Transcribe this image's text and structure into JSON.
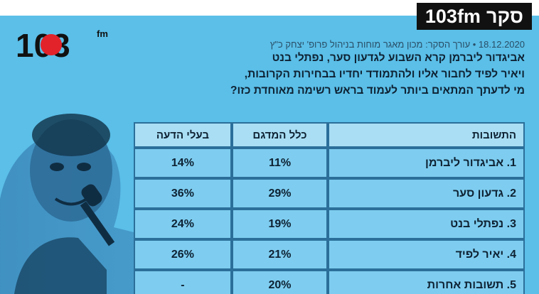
{
  "badge": {
    "title": "סקר",
    "brand": "103fm"
  },
  "logo": {
    "number": "103",
    "suffix": "fm"
  },
  "meta": "18.12.2020 • עורך הסקר: מכון מאגר מוחות בניהול פרופ' יצחק כ\"ץ",
  "question": [
    "אביגדור ליברמן קרא השבוע לגדעון סער, נפתלי בנט",
    "ויאיר לפיד לחבור אליו ולהתמודד יחדיו בבחירות הקרובות,",
    "מי לדעתך המתאים ביותר לעמוד בראש רשימה מאוחדת כזו?"
  ],
  "table": {
    "headers": [
      "התשובות",
      "כלל המדגם",
      "בעלי הדעה"
    ],
    "rows": [
      {
        "answer": "1. אביגדור ליברמן",
        "all": "11%",
        "opinion": "14%"
      },
      {
        "answer": "2. גדעון סער",
        "all": "29%",
        "opinion": "36%"
      },
      {
        "answer": "3. נפתלי בנט",
        "all": "19%",
        "opinion": "24%"
      },
      {
        "answer": "4. יאיר לפיד",
        "all": "21%",
        "opinion": "26%"
      },
      {
        "answer": "5. תשובות אחרות",
        "all": "20%",
        "opinion": "-"
      }
    ]
  },
  "colors": {
    "background": "#5bbfe8",
    "badge": "#111111",
    "cell": "#7ecdf0",
    "header": "#a9def4",
    "border": "#2b6f9a"
  },
  "icons": {
    "person_photo": "speaker-photo-icon",
    "logo": "logo-103fm-icon"
  }
}
